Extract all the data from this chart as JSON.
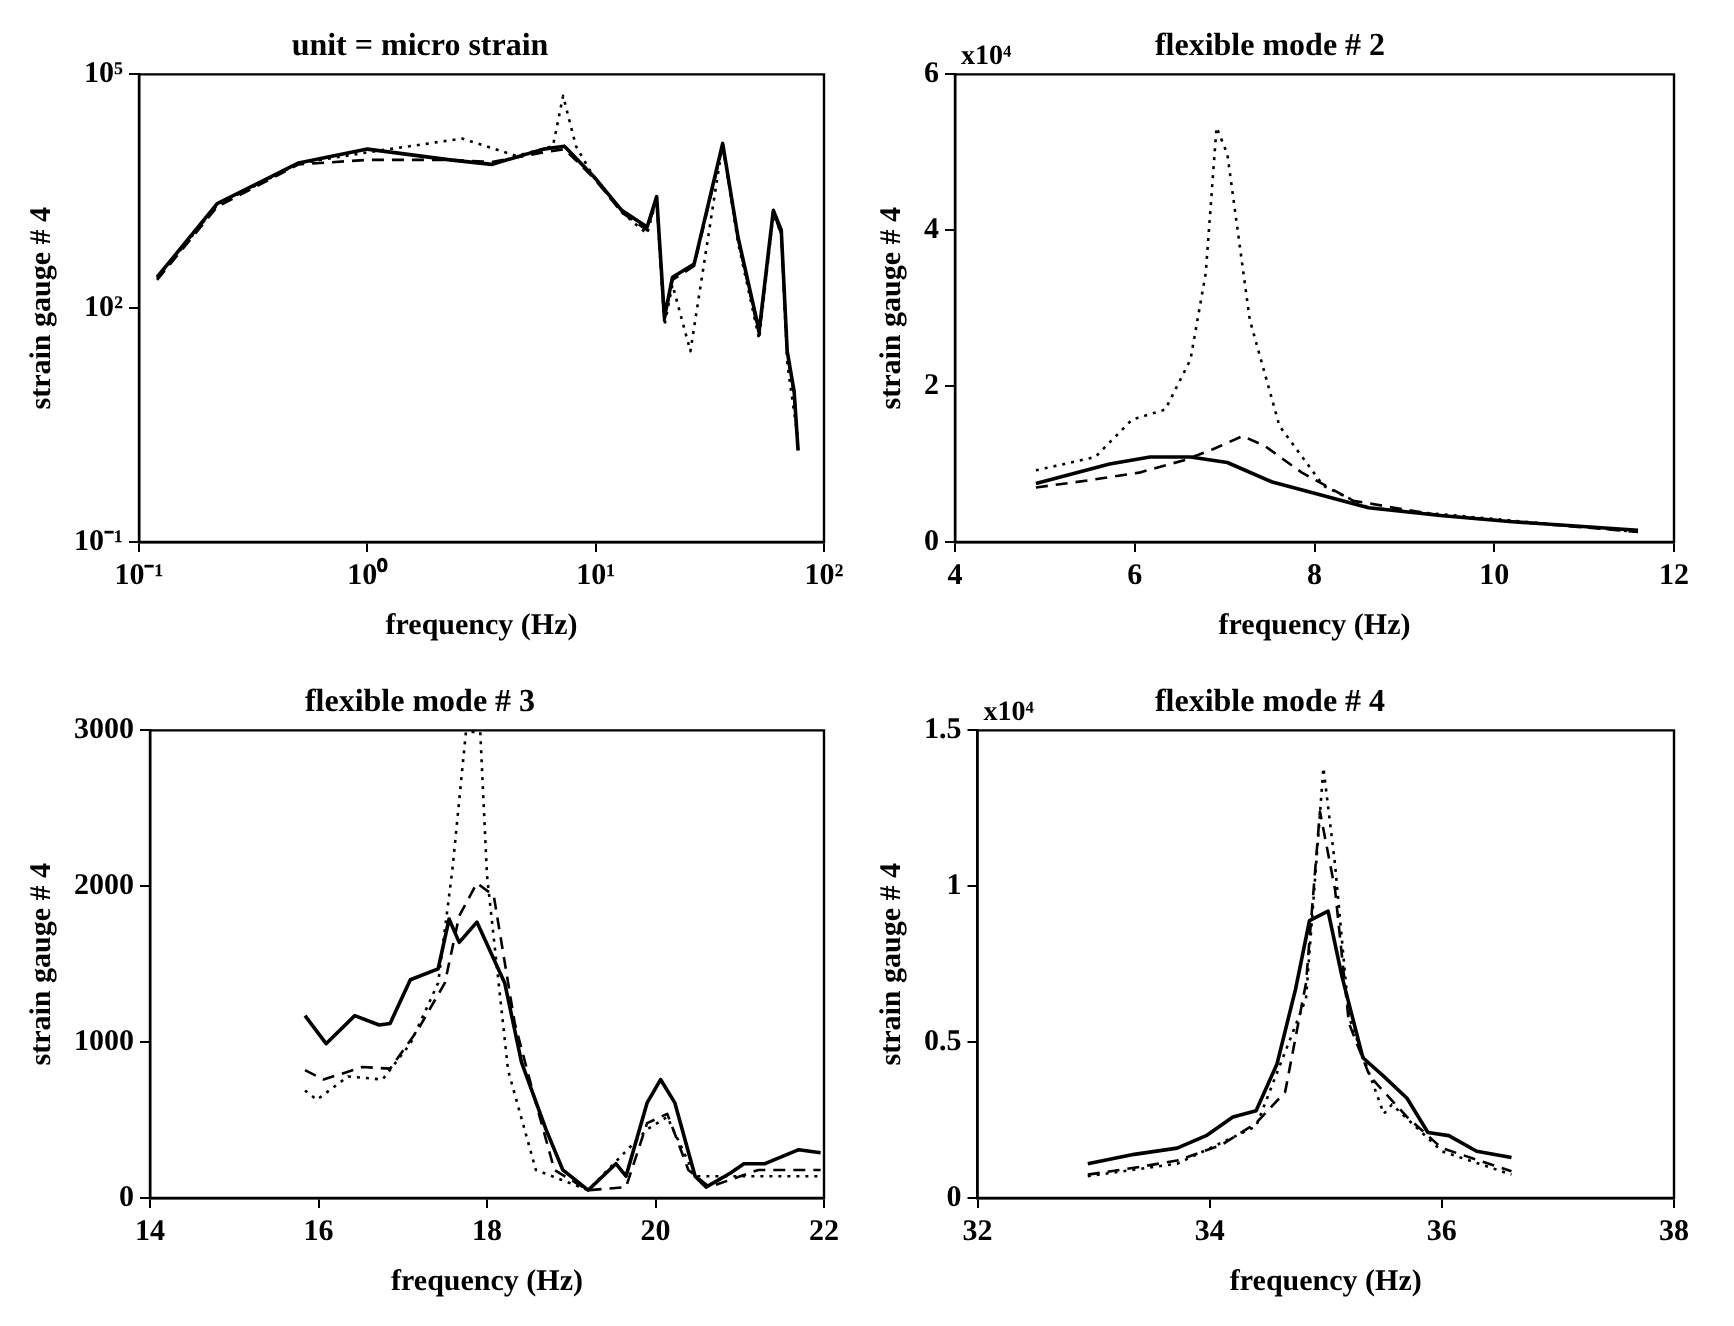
{
  "chart_data": [
    {
      "type": "line",
      "title": "unit = micro strain",
      "xlabel": "frequency (Hz)",
      "ylabel": "strain gauge # 4",
      "log": "xy",
      "grid": false,
      "legend": false,
      "marker": "none",
      "xlim": [
        0.1,
        100
      ],
      "ylim": [
        0.1,
        100000
      ],
      "xticks": [
        {
          "value": 0.1,
          "label": "10⁻¹"
        },
        {
          "value": 1,
          "label": "10⁰"
        },
        {
          "value": 10,
          "label": "10¹"
        },
        {
          "value": 100,
          "label": "10²"
        }
      ],
      "yticks": [
        {
          "value": 0.1,
          "label": "10⁻¹"
        },
        {
          "value": 100,
          "label": "10²"
        },
        {
          "value": 100000,
          "label": "10⁵"
        }
      ],
      "series": [
        {
          "color": "#000000",
          "line_style": "solid",
          "x": [
            0.12,
            0.22,
            0.5,
            1.0,
            2.3,
            3.5,
            5.9,
            7.3,
            9.8,
            13,
            16.8,
            18.5,
            20,
            21.7,
            27,
            36,
            42,
            52,
            60,
            65,
            69,
            74,
            77
          ],
          "values": [
            250,
            2200,
            7300,
            11000,
            8000,
            7000,
            11000,
            12000,
            4900,
            1800,
            1100,
            2700,
            76,
            250,
            370,
            13000,
            820,
            51,
            1800,
            1000,
            28,
            8.5,
            1.5
          ]
        },
        {
          "color": "#000000",
          "line_style": "dashed",
          "x": [
            0.12,
            0.22,
            0.5,
            1.0,
            2.3,
            3.5,
            5.9,
            7.3,
            9.8,
            13,
            16.8,
            18.5,
            20,
            21.7,
            27,
            36,
            42,
            52,
            60,
            65,
            69,
            74,
            77
          ],
          "values": [
            230,
            2000,
            7000,
            8000,
            8000,
            7500,
            10000,
            11000,
            4700,
            1700,
            1000,
            2500,
            70,
            230,
            350,
            12000,
            800,
            45,
            1700,
            900,
            25,
            8,
            1.5
          ]
        },
        {
          "color": "#000000",
          "line_style": "dotted",
          "x": [
            0.12,
            0.22,
            0.5,
            1.0,
            2.6,
            4.5,
            6.5,
            7.2,
            8.2,
            9.8,
            13,
            16.8,
            18.5,
            20,
            21.7,
            26,
            36,
            42,
            52,
            60,
            65,
            69,
            77
          ],
          "values": [
            240,
            2100,
            7200,
            10000,
            15000,
            9000,
            12000,
            53000,
            12000,
            4800,
            1700,
            900,
            2500,
            60,
            200,
            28,
            13000,
            700,
            40,
            1600,
            900,
            20,
            2
          ]
        }
      ]
    },
    {
      "type": "line",
      "title": "flexible mode # 2",
      "xlabel": "frequency (Hz)",
      "ylabel": "strain gauge # 4",
      "annotations": [
        "x10⁴"
      ],
      "grid": false,
      "legend": false,
      "marker": "none",
      "xlim": [
        4,
        12
      ],
      "ylim": [
        0,
        6
      ],
      "xticks": [
        4,
        6,
        8,
        10,
        12
      ],
      "yticks": [
        0,
        2,
        4,
        6
      ],
      "series": [
        {
          "color": "#000000",
          "line_style": "solid",
          "x": [
            4.9,
            5.72,
            6.17,
            6.62,
            7.03,
            7.53,
            8.02,
            8.6,
            9.4,
            10.2,
            11.6
          ],
          "values": [
            0.75,
            1.0,
            1.09,
            1.09,
            1.02,
            0.77,
            0.62,
            0.44,
            0.34,
            0.26,
            0.15
          ]
        },
        {
          "color": "#000000",
          "line_style": "dashed",
          "x": [
            4.9,
            5.48,
            6.05,
            6.55,
            6.87,
            7.2,
            7.45,
            7.86,
            8.43,
            9.4,
            11.6
          ],
          "values": [
            0.7,
            0.79,
            0.89,
            1.05,
            1.19,
            1.36,
            1.23,
            0.89,
            0.53,
            0.34,
            0.13
          ]
        },
        {
          "color": "#000000",
          "line_style": "dotted",
          "x": [
            4.9,
            5.56,
            5.97,
            6.34,
            6.62,
            6.79,
            6.91,
            7.03,
            7.28,
            7.61,
            8.1,
            8.6,
            11.6
          ],
          "values": [
            0.92,
            1.09,
            1.57,
            1.7,
            2.34,
            3.45,
            5.32,
            4.98,
            2.85,
            1.49,
            0.72,
            0.44,
            0.13
          ]
        }
      ]
    },
    {
      "type": "line",
      "title": "flexible mode # 3",
      "xlabel": "frequency (Hz)",
      "ylabel": "strain gauge # 4",
      "grid": false,
      "legend": false,
      "marker": "none",
      "xlim": [
        14,
        22
      ],
      "ylim": [
        0,
        3000
      ],
      "xticks": [
        14,
        16,
        18,
        20,
        22
      ],
      "yticks": [
        0,
        1000,
        2000,
        3000
      ],
      "series": [
        {
          "color": "#000000",
          "line_style": "solid",
          "x": [
            15.84,
            16.09,
            16.43,
            16.72,
            16.85,
            17.09,
            17.42,
            17.55,
            17.67,
            17.88,
            18.21,
            18.41,
            18.7,
            18.9,
            19.2,
            19.53,
            19.65,
            19.9,
            20.06,
            20.23,
            20.47,
            20.6,
            20.89,
            21.05,
            21.3,
            21.7,
            21.96
          ],
          "values": [
            1170,
            990,
            1170,
            1110,
            1120,
            1400,
            1470,
            1790,
            1640,
            1770,
            1380,
            870,
            440,
            180,
            50,
            220,
            140,
            610,
            760,
            610,
            140,
            70,
            160,
            220,
            220,
            310,
            290
          ]
        },
        {
          "color": "#000000",
          "line_style": "dashed",
          "x": [
            15.84,
            16.06,
            16.52,
            16.85,
            17.18,
            17.5,
            17.67,
            17.88,
            18.08,
            18.33,
            18.58,
            18.8,
            19.2,
            19.65,
            19.9,
            20.14,
            20.39,
            20.64,
            21.22,
            21.96
          ],
          "values": [
            820,
            760,
            840,
            830,
            1080,
            1380,
            1810,
            2020,
            1940,
            1120,
            610,
            180,
            50,
            70,
            480,
            540,
            180,
            70,
            180,
            180
          ]
        },
        {
          "color": "#000000",
          "line_style": "dotted",
          "x": [
            15.84,
            15.98,
            16.35,
            16.76,
            17.09,
            17.42,
            17.59,
            17.75,
            17.92,
            18.0,
            18.25,
            18.58,
            19.2,
            19.9,
            20.14,
            20.47,
            21.96
          ],
          "values": [
            690,
            630,
            780,
            760,
            990,
            1380,
            2110,
            2990,
            2990,
            2070,
            820,
            180,
            50,
            440,
            520,
            140,
            140
          ]
        }
      ]
    },
    {
      "type": "line",
      "title": "flexible mode # 4",
      "xlabel": "frequency (Hz)",
      "ylabel": "strain gauge # 4",
      "annotations": [
        "x10⁴"
      ],
      "grid": false,
      "legend": false,
      "marker": "none",
      "xlim": [
        32,
        38
      ],
      "ylim": [
        0,
        1.5
      ],
      "xticks": [
        32,
        34,
        36,
        38
      ],
      "yticks": [
        0,
        0.5,
        1,
        1.5
      ],
      "series": [
        {
          "color": "#000000",
          "line_style": "solid",
          "x": [
            32.95,
            33.35,
            33.72,
            33.97,
            34.2,
            34.4,
            34.58,
            34.74,
            34.86,
            35.02,
            35.14,
            35.32,
            35.5,
            35.7,
            35.88,
            36.06,
            36.3,
            36.6
          ],
          "values": [
            0.11,
            0.14,
            0.16,
            0.2,
            0.26,
            0.28,
            0.43,
            0.67,
            0.89,
            0.92,
            0.71,
            0.45,
            0.39,
            0.32,
            0.21,
            0.2,
            0.15,
            0.13
          ]
        },
        {
          "color": "#000000",
          "line_style": "dashed",
          "x": [
            32.95,
            33.35,
            33.72,
            34.1,
            34.4,
            34.65,
            34.83,
            34.95,
            35.08,
            35.2,
            35.38,
            35.7,
            36.0,
            36.6
          ],
          "values": [
            0.075,
            0.097,
            0.12,
            0.17,
            0.24,
            0.34,
            0.69,
            1.24,
            0.99,
            0.56,
            0.39,
            0.26,
            0.16,
            0.086
          ]
        },
        {
          "color": "#000000",
          "line_style": "dotted",
          "x": [
            32.95,
            33.72,
            34.4,
            34.83,
            34.98,
            35.08,
            35.2,
            35.5,
            35.57,
            36.0,
            36.6
          ],
          "values": [
            0.07,
            0.11,
            0.23,
            0.64,
            1.38,
            1.07,
            0.58,
            0.27,
            0.3,
            0.15,
            0.075
          ]
        }
      ]
    }
  ]
}
